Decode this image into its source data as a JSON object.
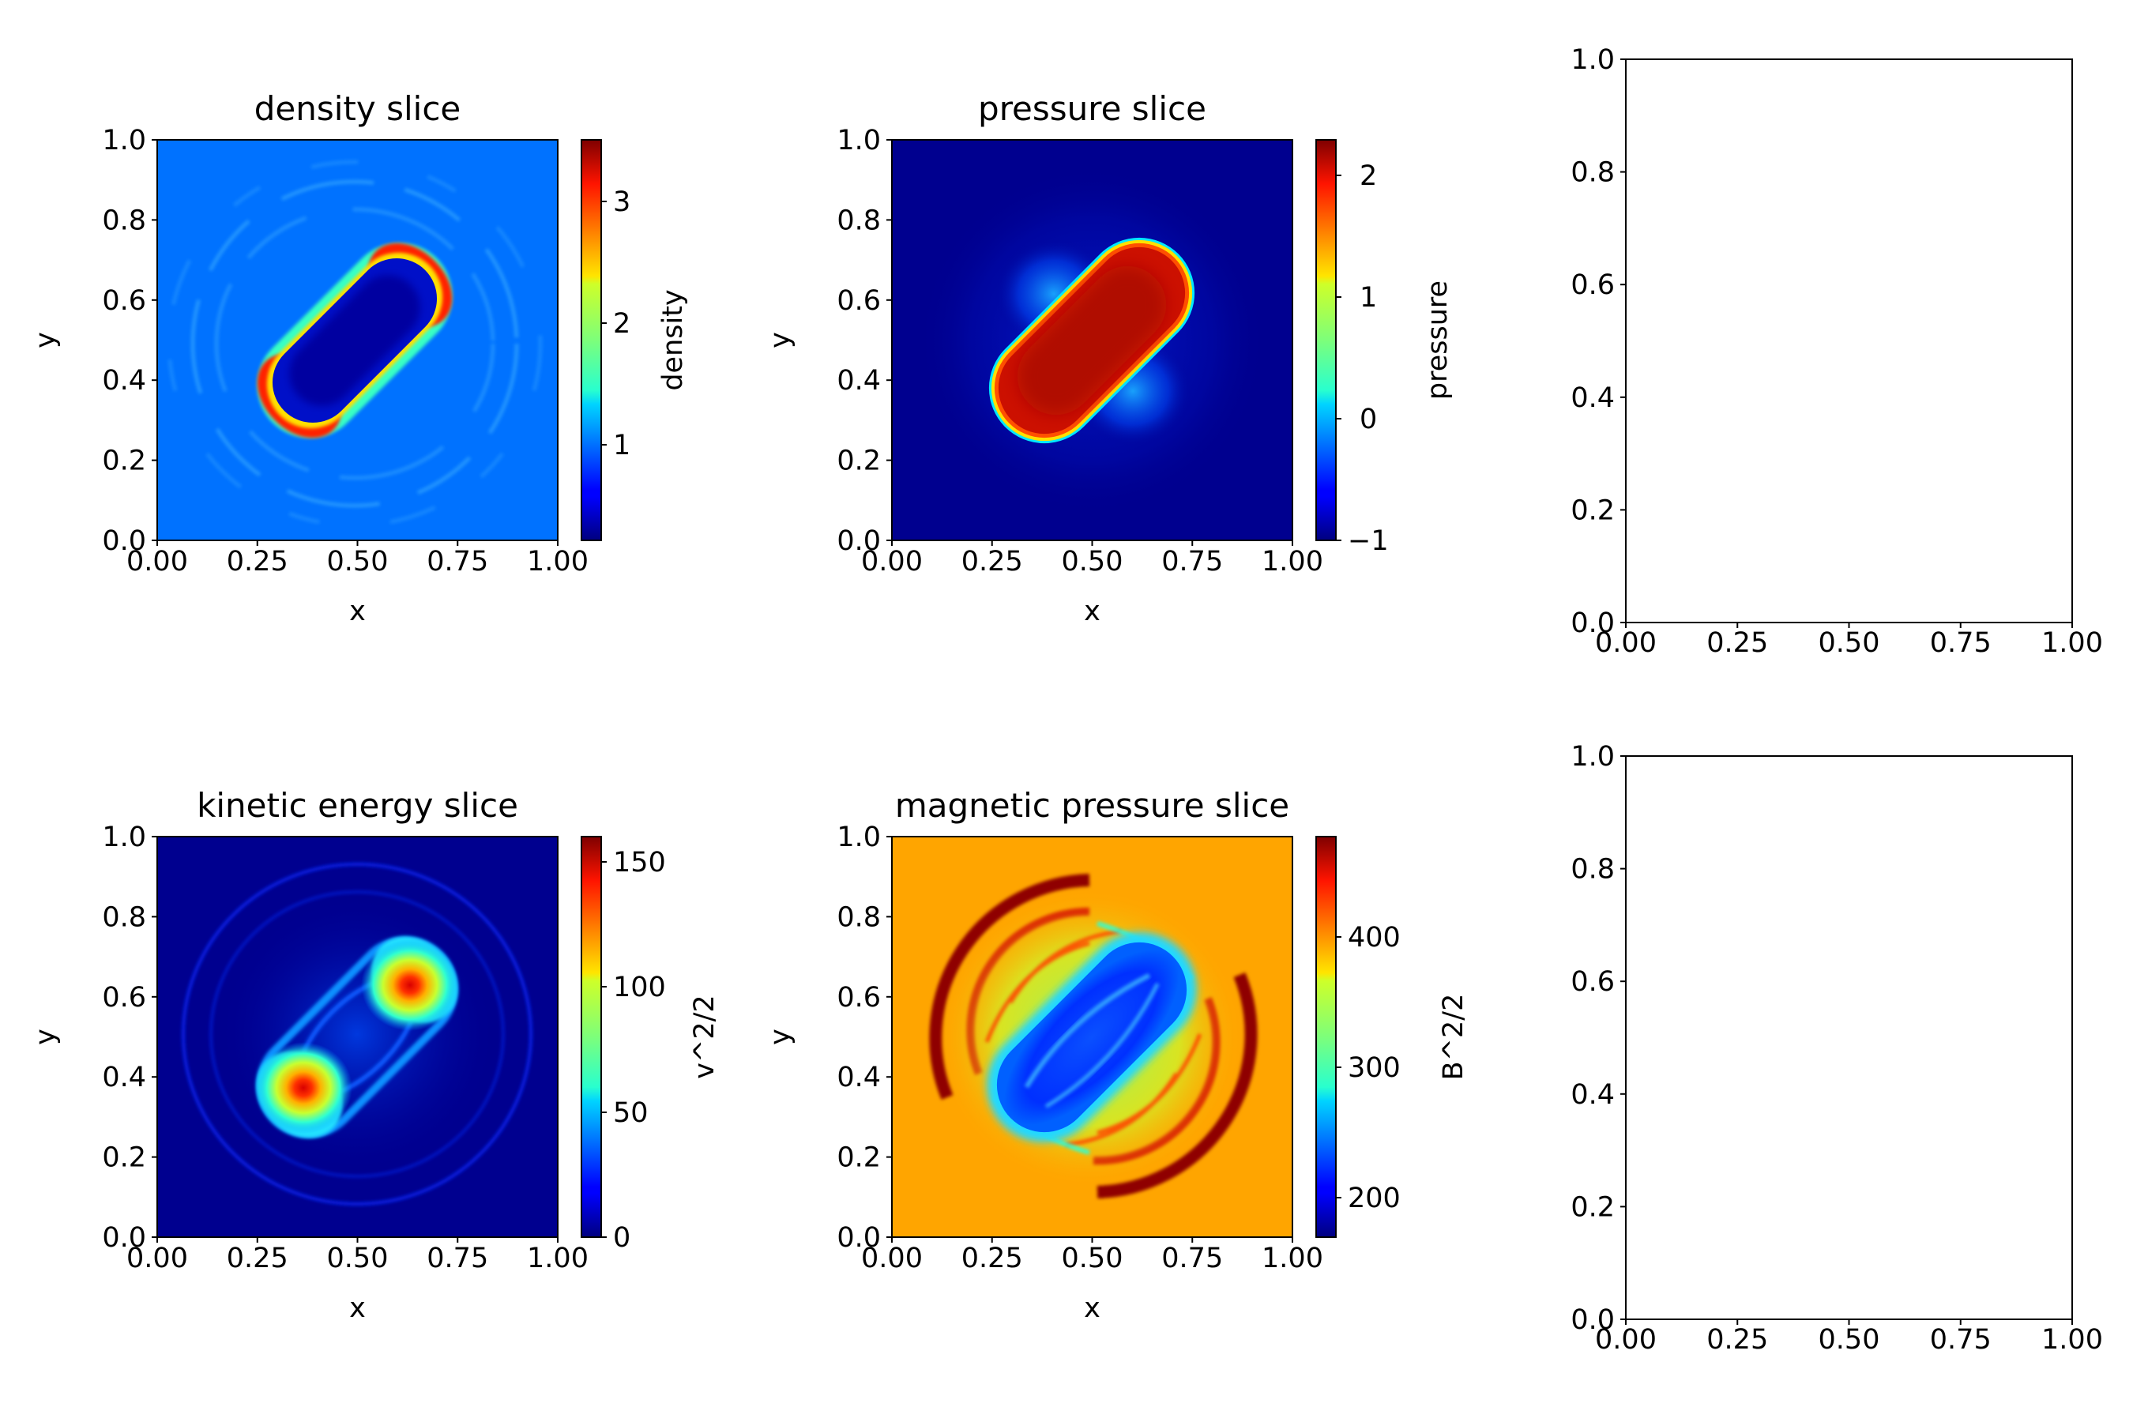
{
  "chart_data": [
    {
      "type": "heatmap",
      "title": "density slice",
      "xlabel": "x",
      "ylabel": "y",
      "xlim": [
        0,
        1
      ],
      "ylim": [
        0,
        1
      ],
      "xticks": [
        "0.00",
        "0.25",
        "0.50",
        "0.75",
        "1.00"
      ],
      "yticks": [
        "0.0",
        "0.2",
        "0.4",
        "0.6",
        "0.8",
        "1.0"
      ],
      "colormap": "jet",
      "colorbar": {
        "label": "density",
        "range": [
          0.2,
          3.5
        ],
        "ticks": [
          "1",
          "2",
          "3"
        ]
      },
      "description": "Elongated low-density capsule oriented along the diagonal from (0.28,0.28) to (0.72,0.72), surrounded by a thin high-density shell (~3.3) at its ends; background ~1."
    },
    {
      "type": "heatmap",
      "title": "pressure slice",
      "xlabel": "x",
      "ylabel": "y",
      "xlim": [
        0,
        1
      ],
      "ylim": [
        0,
        1
      ],
      "xticks": [
        "0.00",
        "0.25",
        "0.50",
        "0.75",
        "1.00"
      ],
      "yticks": [
        "0.0",
        "0.2",
        "0.4",
        "0.6",
        "0.8",
        "1.0"
      ],
      "colormap": "jet",
      "colorbar": {
        "label": "pressure",
        "range": [
          -1.0,
          2.3
        ],
        "ticks": [
          "−1",
          "0",
          "1",
          "2"
        ]
      },
      "description": "High-pressure capsule (~2.1) along the diagonal with background ~-1 and faint lobes near (0.4,0.6) and (0.6,0.4)."
    },
    {
      "type": "heatmap",
      "title": "kinetic energy slice",
      "xlabel": "x",
      "ylabel": "y",
      "xlim": [
        0,
        1
      ],
      "ylim": [
        0,
        1
      ],
      "xticks": [
        "0.00",
        "0.25",
        "0.50",
        "0.75",
        "1.00"
      ],
      "yticks": [
        "0.0",
        "0.2",
        "0.4",
        "0.6",
        "0.8",
        "1.0"
      ],
      "colormap": "jet",
      "colorbar": {
        "label": "v^2/2",
        "range": [
          0,
          160
        ],
        "ticks": [
          "0",
          "50",
          "100",
          "150"
        ]
      },
      "description": "Two hot spots (~150) at the capsule ends near (0.36,0.37) and (0.63,0.63); background ~0 with faint rings."
    },
    {
      "type": "heatmap",
      "title": "magnetic pressure slice",
      "xlabel": "x",
      "ylabel": "y",
      "xlim": [
        0,
        1
      ],
      "ylim": [
        0,
        1
      ],
      "xticks": [
        "0.00",
        "0.25",
        "0.50",
        "0.75",
        "1.00"
      ],
      "yticks": [
        "0.0",
        "0.2",
        "0.4",
        "0.6",
        "0.8",
        "1.0"
      ],
      "colormap": "jet",
      "colorbar": {
        "label": "B^2/2",
        "range": [
          170,
          475
        ],
        "ticks": [
          "200",
          "300",
          "400"
        ]
      },
      "description": "Background ~400 (orange); low magnetic pressure capsule (~200) along diagonal; high-value arcs (~460) around (0.3,0.8) and (0.7,0.2)."
    },
    {
      "type": "empty",
      "xlim": [
        0,
        1
      ],
      "ylim": [
        0,
        1
      ],
      "xticks": [
        "0.00",
        "0.25",
        "0.50",
        "0.75",
        "1.00"
      ],
      "yticks": [
        "0.0",
        "0.2",
        "0.4",
        "0.6",
        "0.8",
        "1.0"
      ]
    },
    {
      "type": "empty",
      "xlim": [
        0,
        1
      ],
      "ylim": [
        0,
        1
      ],
      "xticks": [
        "0.00",
        "0.25",
        "0.50",
        "0.75",
        "1.00"
      ],
      "yticks": [
        "0.0",
        "0.2",
        "0.4",
        "0.6",
        "0.8",
        "1.0"
      ]
    }
  ]
}
